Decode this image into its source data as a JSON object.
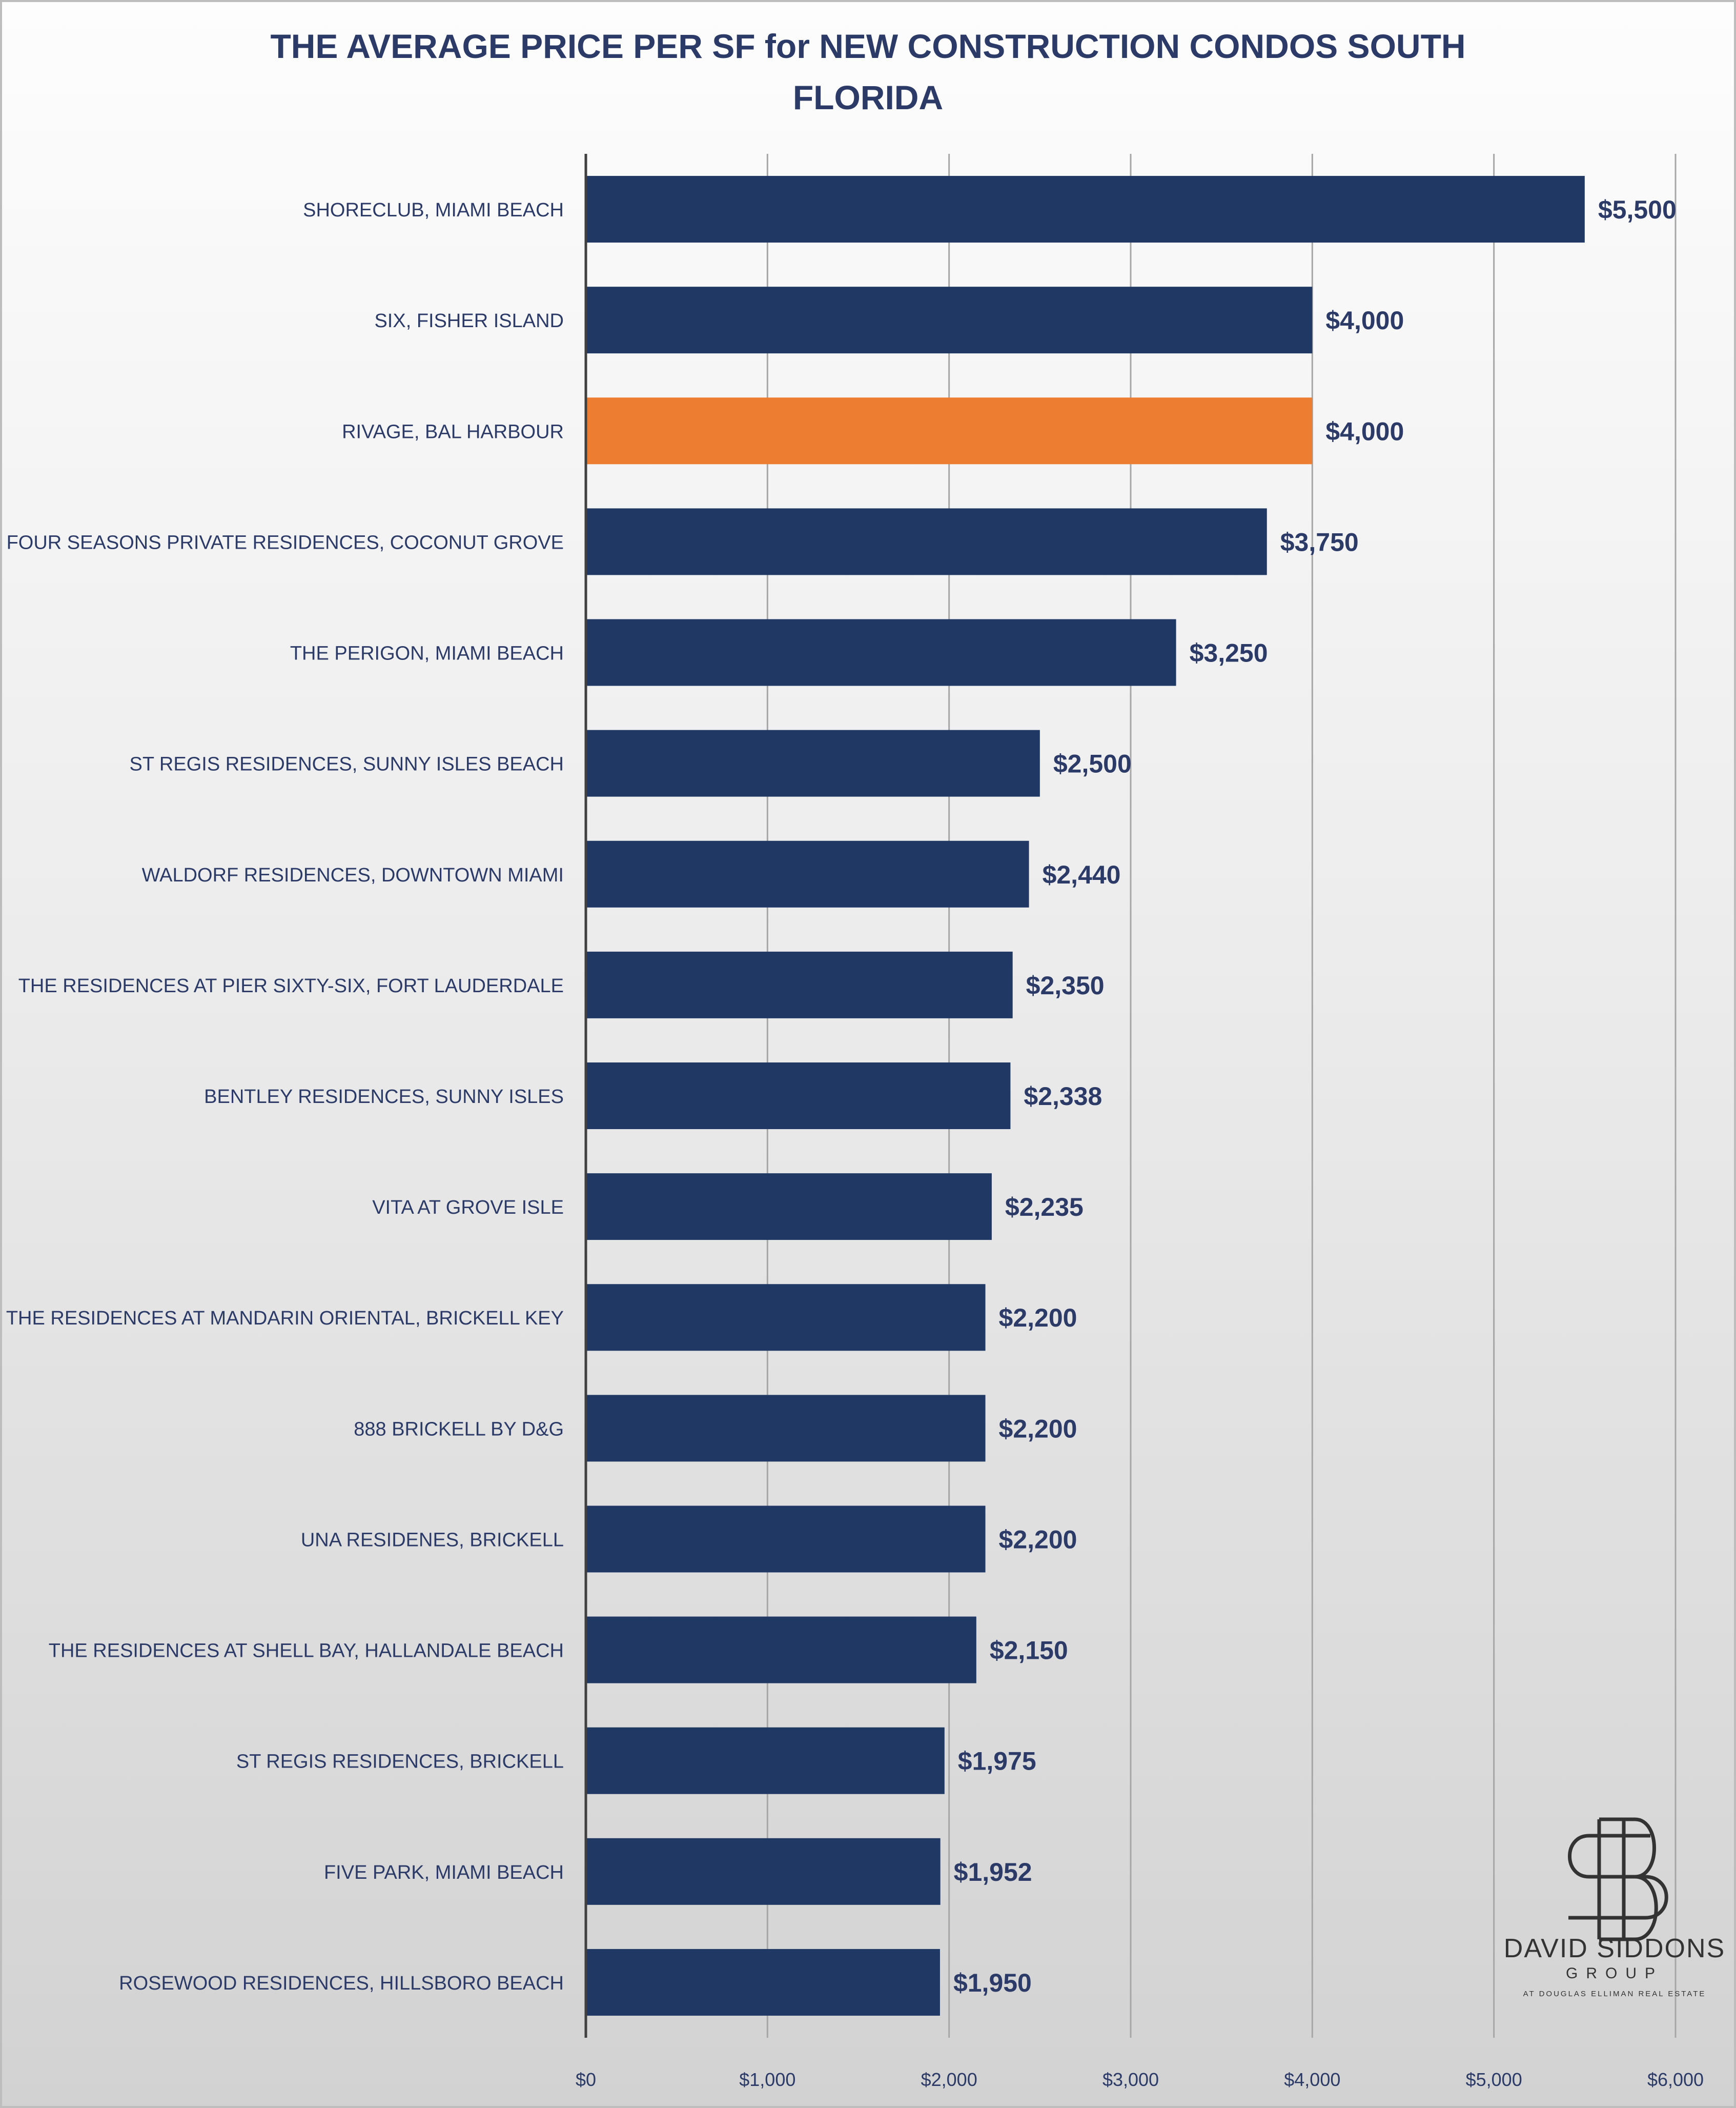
{
  "chart_data": {
    "type": "bar",
    "orientation": "horizontal",
    "title_lines": [
      "THE AVERAGE PRICE PER SF for NEW CONSTRUCTION CONDOS SOUTH",
      "FLORIDA"
    ],
    "categories": [
      "SHORECLUB, MIAMI BEACH",
      "SIX, FISHER ISLAND",
      "RIVAGE, BAL HARBOUR",
      "FOUR SEASONS PRIVATE RESIDENCES, COCONUT GROVE",
      "THE PERIGON, MIAMI BEACH",
      "ST REGIS RESIDENCES, SUNNY ISLES BEACH",
      "WALDORF RESIDENCES, DOWNTOWN MIAMI",
      "THE RESIDENCES AT PIER SIXTY-SIX, FORT LAUDERDALE",
      "BENTLEY RESIDENCES, SUNNY ISLES",
      "VITA AT GROVE ISLE",
      "THE RESIDENCES AT MANDARIN ORIENTAL, BRICKELL KEY",
      "888 BRICKELL BY D&G",
      "UNA RESIDENES, BRICKELL",
      "THE RESIDENCES AT SHELL BAY, HALLANDALE BEACH",
      "ST REGIS RESIDENCES, BRICKELL",
      "FIVE PARK, MIAMI BEACH",
      "ROSEWOOD RESIDENCES, HILLSBORO BEACH"
    ],
    "values": [
      5500,
      4000,
      4000,
      3750,
      3250,
      2500,
      2440,
      2350,
      2338,
      2235,
      2200,
      2200,
      2200,
      2150,
      1975,
      1952,
      1950
    ],
    "value_labels": [
      "$5,500",
      "$4,000",
      "$4,000",
      "$3,750",
      "$3,250",
      "$2,500",
      "$2,440",
      "$2,350",
      "$2,338",
      "$2,235",
      "$2,200",
      "$2,200",
      "$2,200",
      "$2,150",
      "$1,975",
      "$1,952",
      "$1,950"
    ],
    "highlight_index": 2,
    "xlim": [
      0,
      6000
    ],
    "x_ticks": [
      0,
      1000,
      2000,
      3000,
      4000,
      5000,
      6000
    ],
    "x_tick_labels": [
      "$0",
      "$1,000",
      "$2,000",
      "$3,000",
      "$4,000",
      "$5,000",
      "$6,000"
    ],
    "grid": "vertical",
    "legend": "none",
    "colors": {
      "bar": "#1f3864",
      "highlight": "#ed7d31",
      "label_text": "#2b3a67",
      "grid": "#a6a6a6",
      "axis": "#404040"
    }
  },
  "logo": {
    "name": "DAVID SIDDONS",
    "group": "GROUP",
    "subtitle": "AT DOUGLAS ELLIMAN REAL ESTATE"
  }
}
